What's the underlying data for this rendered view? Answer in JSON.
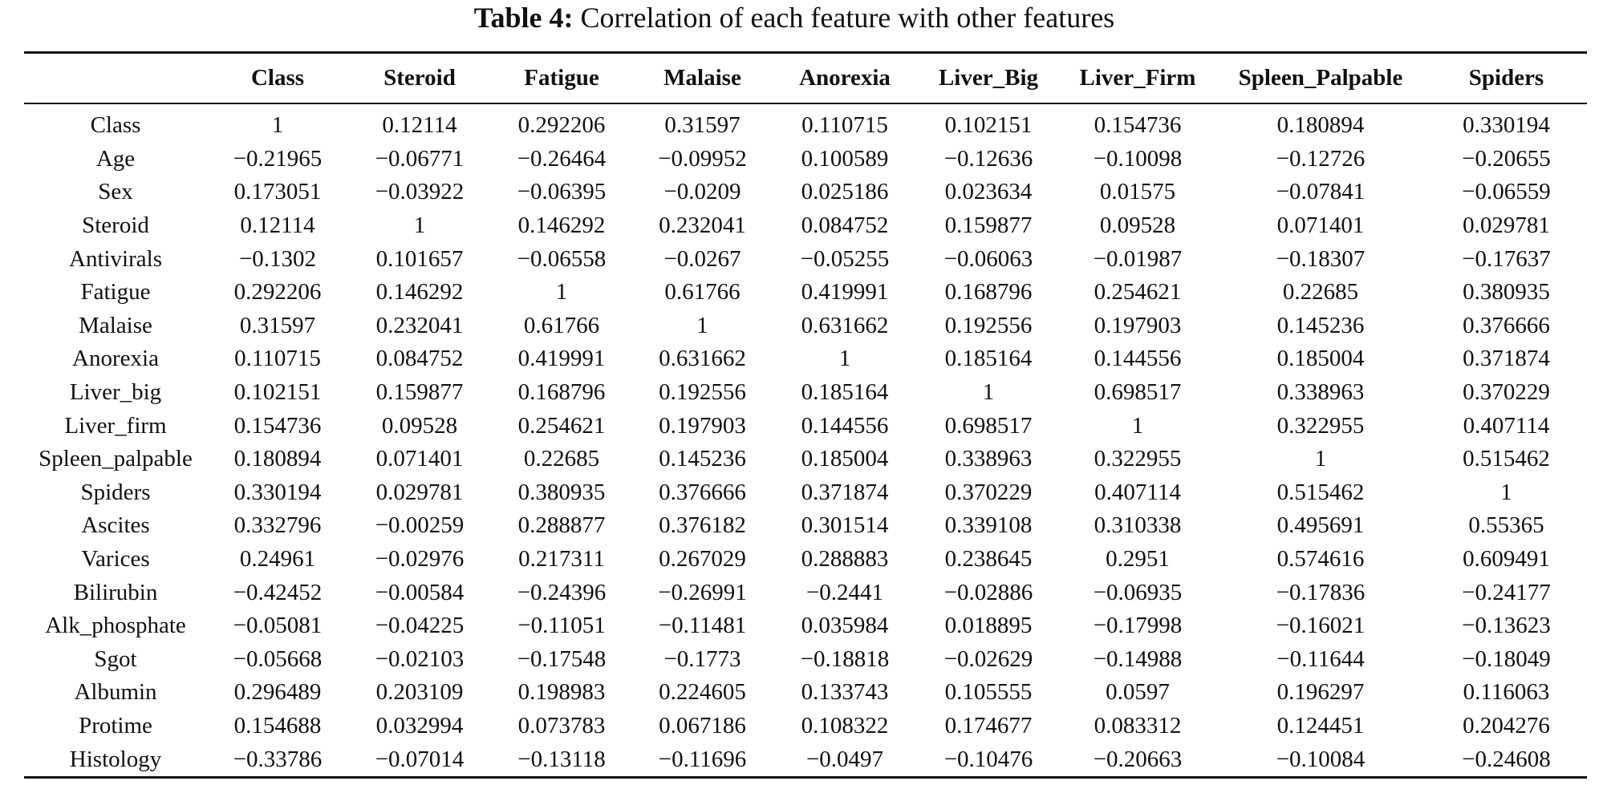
{
  "caption": {
    "label": "Table 4:",
    "text": "Correlation of each feature with other features"
  },
  "table": {
    "corner": "",
    "columns": [
      "Class",
      "Steroid",
      "Fatigue",
      "Malaise",
      "Anorexia",
      "Liver_Big",
      "Liver_Firm",
      "Spleen_Palpable",
      "Spiders"
    ],
    "rows": [
      {
        "label": "Class",
        "cells": [
          "1",
          "0.12114",
          "0.292206",
          "0.31597",
          "0.110715",
          "0.102151",
          "0.154736",
          "0.180894",
          "0.330194"
        ]
      },
      {
        "label": "Age",
        "cells": [
          "−0.21965",
          "−0.06771",
          "−0.26464",
          "−0.09952",
          "0.100589",
          "−0.12636",
          "−0.10098",
          "−0.12726",
          "−0.20655"
        ]
      },
      {
        "label": "Sex",
        "cells": [
          "0.173051",
          "−0.03922",
          "−0.06395",
          "−0.0209",
          "0.025186",
          "0.023634",
          "0.01575",
          "−0.07841",
          "−0.06559"
        ]
      },
      {
        "label": "Steroid",
        "cells": [
          "0.12114",
          "1",
          "0.146292",
          "0.232041",
          "0.084752",
          "0.159877",
          "0.09528",
          "0.071401",
          "0.029781"
        ]
      },
      {
        "label": "Antivirals",
        "cells": [
          "−0.1302",
          "0.101657",
          "−0.06558",
          "−0.0267",
          "−0.05255",
          "−0.06063",
          "−0.01987",
          "−0.18307",
          "−0.17637"
        ]
      },
      {
        "label": "Fatigue",
        "cells": [
          "0.292206",
          "0.146292",
          "1",
          "0.61766",
          "0.419991",
          "0.168796",
          "0.254621",
          "0.22685",
          "0.380935"
        ]
      },
      {
        "label": "Malaise",
        "cells": [
          "0.31597",
          "0.232041",
          "0.61766",
          "1",
          "0.631662",
          "0.192556",
          "0.197903",
          "0.145236",
          "0.376666"
        ]
      },
      {
        "label": "Anorexia",
        "cells": [
          "0.110715",
          "0.084752",
          "0.419991",
          "0.631662",
          "1",
          "0.185164",
          "0.144556",
          "0.185004",
          "0.371874"
        ]
      },
      {
        "label": "Liver_big",
        "cells": [
          "0.102151",
          "0.159877",
          "0.168796",
          "0.192556",
          "0.185164",
          "1",
          "0.698517",
          "0.338963",
          "0.370229"
        ]
      },
      {
        "label": "Liver_firm",
        "cells": [
          "0.154736",
          "0.09528",
          "0.254621",
          "0.197903",
          "0.144556",
          "0.698517",
          "1",
          "0.322955",
          "0.407114"
        ]
      },
      {
        "label": "Spleen_palpable",
        "cells": [
          "0.180894",
          "0.071401",
          "0.22685",
          "0.145236",
          "0.185004",
          "0.338963",
          "0.322955",
          "1",
          "0.515462"
        ]
      },
      {
        "label": "Spiders",
        "cells": [
          "0.330194",
          "0.029781",
          "0.380935",
          "0.376666",
          "0.371874",
          "0.370229",
          "0.407114",
          "0.515462",
          "1"
        ]
      },
      {
        "label": "Ascites",
        "cells": [
          "0.332796",
          "−0.00259",
          "0.288877",
          "0.376182",
          "0.301514",
          "0.339108",
          "0.310338",
          "0.495691",
          "0.55365"
        ]
      },
      {
        "label": "Varices",
        "cells": [
          "0.24961",
          "−0.02976",
          "0.217311",
          "0.267029",
          "0.288883",
          "0.238645",
          "0.2951",
          "0.574616",
          "0.609491"
        ]
      },
      {
        "label": "Bilirubin",
        "cells": [
          "−0.42452",
          "−0.00584",
          "−0.24396",
          "−0.26991",
          "−0.2441",
          "−0.02886",
          "−0.06935",
          "−0.17836",
          "−0.24177"
        ]
      },
      {
        "label": "Alk_phosphate",
        "cells": [
          "−0.05081",
          "−0.04225",
          "−0.11051",
          "−0.11481",
          "0.035984",
          "0.018895",
          "−0.17998",
          "−0.16021",
          "−0.13623"
        ]
      },
      {
        "label": "Sgot",
        "cells": [
          "−0.05668",
          "−0.02103",
          "−0.17548",
          "−0.1773",
          "−0.18818",
          "−0.02629",
          "−0.14988",
          "−0.11644",
          "−0.18049"
        ]
      },
      {
        "label": "Albumin",
        "cells": [
          "0.296489",
          "0.203109",
          "0.198983",
          "0.224605",
          "0.133743",
          "0.105555",
          "0.0597",
          "0.196297",
          "0.116063"
        ]
      },
      {
        "label": "Protime",
        "cells": [
          "0.154688",
          "0.032994",
          "0.073783",
          "0.067186",
          "0.108322",
          "0.174677",
          "0.083312",
          "0.124451",
          "0.204276"
        ]
      },
      {
        "label": "Histology",
        "cells": [
          "−0.33786",
          "−0.07014",
          "−0.13118",
          "−0.11696",
          "−0.0497",
          "−0.10476",
          "−0.20663",
          "−0.10084",
          "−0.24608"
        ]
      }
    ]
  }
}
